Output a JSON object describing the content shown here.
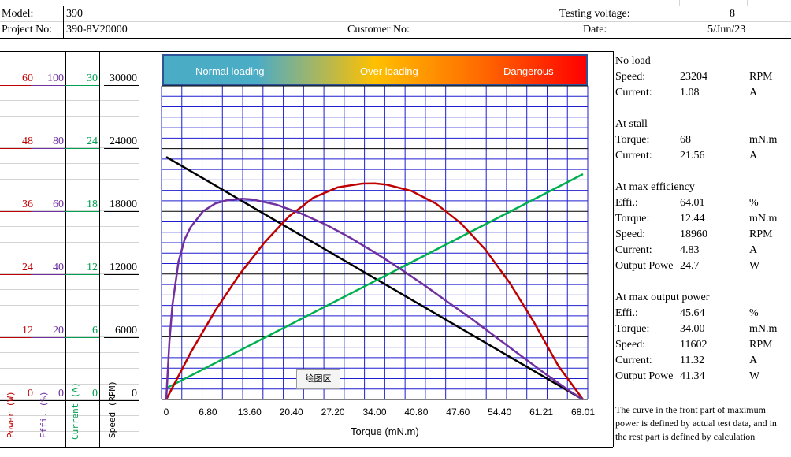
{
  "header": {
    "model_label": "Model:",
    "model": "390",
    "project_label": "Project No:",
    "project": "390-8V20000",
    "customer_label": "Customer No:",
    "voltage_label": "Testing voltage:",
    "voltage": "8",
    "date_label": "Date:",
    "date": "5/Jun/23"
  },
  "axes": {
    "power": {
      "ticks": [
        "60",
        "48",
        "36",
        "24",
        "12",
        "0"
      ],
      "label": "Power (W)",
      "color": "#c00000"
    },
    "effi": {
      "ticks": [
        "100",
        "80",
        "60",
        "40",
        "20",
        "0"
      ],
      "label": "Effi. (%)",
      "color": "#7030a0"
    },
    "current": {
      "ticks": [
        "30",
        "24",
        "18",
        "12",
        "6",
        "0"
      ],
      "label": "Current (A)",
      "color": "#00a050"
    },
    "speed": {
      "ticks": [
        "30000",
        "24000",
        "18000",
        "12000",
        "6000",
        "0"
      ],
      "label": "Speed (RPM)",
      "color": "#000000"
    }
  },
  "legend": {
    "normal": "Normal loading",
    "over": "Over loading",
    "danger": "Dangerous"
  },
  "plot_tag": "绘图区",
  "chart_data": {
    "type": "line",
    "xlabel": "Torque (mN.m)",
    "x_ticks": [
      "0",
      "6.80",
      "13.60",
      "20.40",
      "27.20",
      "34.00",
      "40.80",
      "47.60",
      "54.40",
      "61.21",
      "68.01"
    ],
    "xlim": [
      0,
      68.01
    ],
    "grid": true,
    "series": [
      {
        "axis": "speed",
        "color": "#000000",
        "x": [
          0,
          68.01
        ],
        "y": [
          23204,
          0
        ]
      },
      {
        "axis": "current",
        "color": "#00b050",
        "x": [
          0,
          68.01
        ],
        "y": [
          1.08,
          21.56
        ]
      },
      {
        "axis": "power",
        "color": "#c00000",
        "x": [
          0,
          4,
          8,
          12,
          16,
          20,
          24,
          28,
          32,
          34,
          36,
          40,
          44,
          48,
          52,
          56,
          60,
          64,
          68.01
        ],
        "y": [
          0,
          9.0,
          17.0,
          24.0,
          30.0,
          35.0,
          38.6,
          40.6,
          41.3,
          41.34,
          41.1,
          39.9,
          37.5,
          33.8,
          28.8,
          22.4,
          14.8,
          6.4,
          0
        ]
      },
      {
        "axis": "effi",
        "color": "#7030a0",
        "x": [
          0,
          0.5,
          1,
          2,
          3,
          4,
          6,
          8,
          10,
          12.44,
          14,
          18,
          22,
          26,
          30,
          34,
          38,
          42,
          46,
          50,
          54,
          58,
          62,
          66,
          68.01
        ],
        "y": [
          0,
          18,
          30,
          44,
          51,
          55,
          60,
          62.5,
          63.6,
          64.01,
          63.8,
          62.1,
          59.3,
          55.8,
          51.6,
          46.9,
          41.9,
          36.6,
          31.0,
          25.5,
          19.6,
          13.8,
          8.0,
          2.5,
          0
        ]
      }
    ],
    "y_axes": {
      "speed": [
        0,
        30000
      ],
      "current": [
        0,
        30
      ],
      "power": [
        0,
        60
      ],
      "effi": [
        0,
        100
      ]
    }
  },
  "panel": {
    "no_load": {
      "title": "No load",
      "speed_label": "Speed:",
      "speed": "23204",
      "speed_unit": "RPM",
      "current_label": "Current:",
      "current": "1.08",
      "current_unit": "A"
    },
    "stall": {
      "title": "At stall",
      "torque_label": "Torque:",
      "torque": "68",
      "torque_unit": "mN.m",
      "current_label": "Current:",
      "current": "21.56",
      "current_unit": "A"
    },
    "max_eff": {
      "title": "At max efficiency",
      "effi_label": "Effi.:",
      "effi": "64.01",
      "effi_unit": "%",
      "torque_label": "Torque:",
      "torque": "12.44",
      "torque_unit": "mN.m",
      "speed_label": "Speed:",
      "speed": "18960",
      "speed_unit": "RPM",
      "current_label": "Current:",
      "current": "4.83",
      "current_unit": "A",
      "power_label": "Output Powe",
      "power": "24.7",
      "power_unit": "W"
    },
    "max_power": {
      "title": "At max output power",
      "effi_label": "Effi.:",
      "effi": "45.64",
      "effi_unit": "%",
      "torque_label": "Torque:",
      "torque": "34.00",
      "torque_unit": "mN.m",
      "speed_label": "Speed:",
      "speed": "11602",
      "speed_unit": "RPM",
      "current_label": "Current:",
      "current": "11.32",
      "current_unit": "A",
      "power_label": "Output Powe",
      "power": "41.34",
      "power_unit": "W"
    },
    "note": "The curve in the front part of maximum power is defined by actual test data, and in the rest part is defined by calculation"
  }
}
